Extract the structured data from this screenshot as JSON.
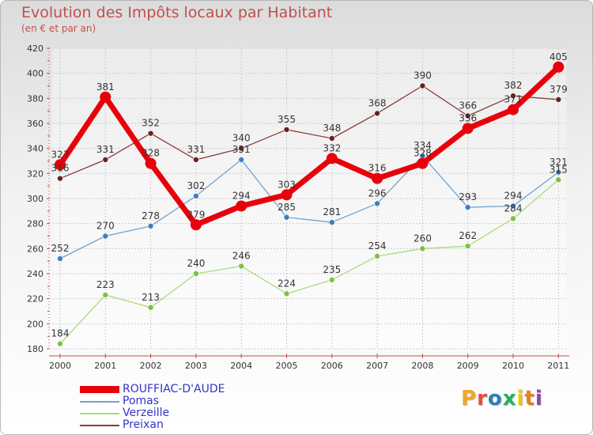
{
  "title": "Evolution des Impôts locaux par Habitant",
  "subtitle": "(en € et par an)",
  "logo": {
    "text": "Proxiti",
    "letters": [
      "P",
      "r",
      "o",
      "x",
      "i",
      "t",
      "i"
    ],
    "colors": [
      "#f5a623",
      "#e74c3c",
      "#2980b9",
      "#27ae60",
      "#f1c40f",
      "#e67e22",
      "#8e44ad"
    ]
  },
  "chart_data": {
    "type": "line",
    "categories": [
      "2000",
      "2001",
      "2002",
      "2003",
      "2004",
      "2005",
      "2006",
      "2007",
      "2008",
      "2009",
      "2010",
      "2011"
    ],
    "ylim": [
      180,
      420
    ],
    "yticks": [
      180,
      200,
      220,
      240,
      260,
      280,
      300,
      320,
      340,
      360,
      380,
      400,
      420
    ],
    "grid": true,
    "legend": "bottom-left",
    "series": [
      {
        "name": "ROUFFIAC-D'AUDE",
        "color": "#e8000b",
        "marker": "#e8000b",
        "width": 7,
        "radius": 7,
        "values": [
          327,
          381,
          328,
          279,
          294,
          303,
          332,
          316,
          328,
          356,
          371,
          405
        ],
        "labels": [
          "327",
          "381",
          "328",
          "279",
          "294",
          "303",
          "332",
          "316",
          "328",
          "356",
          "371",
          "405"
        ]
      },
      {
        "name": "Pomas",
        "color": "#6fa3d0",
        "marker": "#3b7fc0",
        "width": 1.3,
        "radius": 3.5,
        "values": [
          252,
          270,
          278,
          302,
          331,
          285,
          281,
          296,
          334,
          293,
          294,
          321
        ],
        "labels": [
          "252",
          "270",
          "278",
          "302",
          "331",
          "285",
          "281",
          "296",
          "334",
          "293",
          "294",
          "321"
        ]
      },
      {
        "name": "Verzeille",
        "color": "#a8dc7a",
        "marker": "#7cc242",
        "width": 1.3,
        "radius": 3.5,
        "values": [
          184,
          223,
          213,
          240,
          246,
          224,
          235,
          254,
          260,
          262,
          284,
          315
        ],
        "labels": [
          "184",
          "223",
          "213",
          "240",
          "246",
          "224",
          "235",
          "254",
          "260",
          "262",
          "284",
          "315"
        ]
      },
      {
        "name": "Preixan",
        "color": "#8b3a3a",
        "marker": "#6b1f1f",
        "width": 1.3,
        "radius": 3.5,
        "values": [
          316,
          331,
          352,
          331,
          340,
          355,
          348,
          368,
          390,
          366,
          382,
          379
        ],
        "labels": [
          "316",
          "331",
          "352",
          "331",
          "340",
          "355",
          "348",
          "368",
          "390",
          "366",
          "382",
          "379"
        ]
      }
    ]
  }
}
